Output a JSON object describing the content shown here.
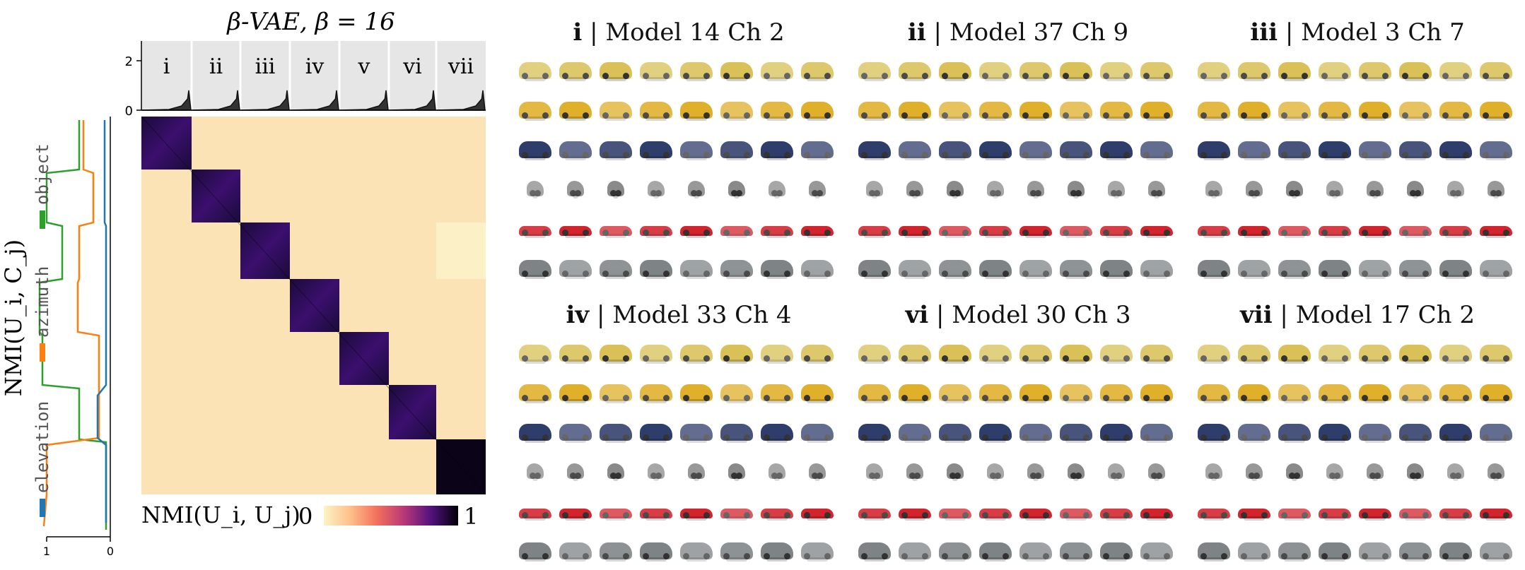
{
  "figure": {
    "title": "β-VAE, β = 16",
    "cluster_labels": [
      "i",
      "ii",
      "iii",
      "iv",
      "v",
      "vi",
      "vii"
    ],
    "top_axis_ticks": [
      "2",
      "0"
    ],
    "left_axis_label": "NMI(U_i, C_j)",
    "left_axis_ticks": [
      "1",
      "0"
    ],
    "legend": [
      {
        "name": "object",
        "color": "#2ca02c"
      },
      {
        "name": "azimuth",
        "color": "#ff7f0e"
      },
      {
        "name": "elevation",
        "color": "#1f77b4"
      }
    ],
    "colorbar": {
      "label": "NMI(U_i, U_j)",
      "min": "0",
      "max": "1"
    }
  },
  "panels": [
    {
      "num": "i",
      "rest": " | Model 14 Ch 2"
    },
    {
      "num": "ii",
      "rest": " | Model 37 Ch 9"
    },
    {
      "num": "iii",
      "rest": " | Model 3 Ch 7"
    },
    {
      "num": "iv",
      "rest": " | Model 33 Ch 4"
    },
    {
      "num": "vi",
      "rest": " | Model 30 Ch 3"
    },
    {
      "num": "vii",
      "rest": " | Model 17 Ch 2"
    }
  ],
  "car_row_colors": [
    "#d9c157",
    "#e0b02a",
    "#2f3d6a",
    "#8a8a8a",
    "#d3232c",
    "#7e8486"
  ]
}
